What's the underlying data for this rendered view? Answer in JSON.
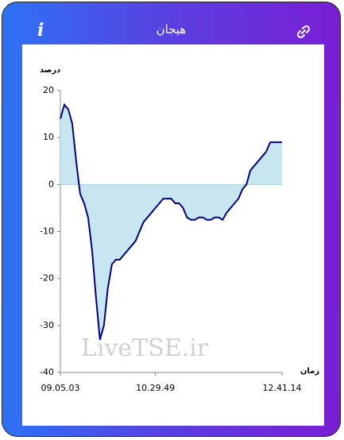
{
  "header": {
    "info": "i",
    "title": "هیجان"
  },
  "chart_data": {
    "type": "line",
    "ylabel": "درصد",
    "xlabel": "زمان",
    "watermark": "LiveTSE.ir",
    "categories": [
      "09.05.03",
      null,
      null,
      null,
      null,
      null,
      null,
      null,
      null,
      null,
      null,
      null,
      null,
      null,
      null,
      null,
      null,
      null,
      null,
      null,
      null,
      null,
      null,
      null,
      "10.29.49",
      null,
      null,
      null,
      null,
      null,
      null,
      null,
      null,
      null,
      null,
      null,
      null,
      null,
      null,
      null,
      null,
      null,
      null,
      null,
      null,
      null,
      null,
      null,
      null,
      null,
      null,
      null,
      null,
      null,
      null,
      null,
      "12.41.14"
    ],
    "series": [
      {
        "color": "#000080",
        "fill": "#c8e6f0",
        "values": [
          14,
          17,
          16,
          13,
          5,
          -2,
          -4,
          -7,
          -14,
          -24,
          -33,
          -30,
          -22,
          -17,
          -16,
          -16,
          -15,
          -14,
          -13,
          -12,
          -10,
          -8,
          -7,
          -6,
          -5,
          -4,
          -3,
          -3,
          -3,
          -4,
          -4,
          -5,
          -7,
          -7.5,
          -7.5,
          -7,
          -7,
          -7.5,
          -7.5,
          -7,
          -7,
          -7.5,
          -6,
          -5,
          -4,
          -3,
          -1,
          0,
          3,
          4,
          5,
          6,
          7,
          9,
          9,
          9,
          9
        ]
      }
    ],
    "ylim": [
      -40,
      20
    ],
    "yticks": [
      -40,
      -30,
      -20,
      -10,
      0,
      10,
      20
    ]
  }
}
